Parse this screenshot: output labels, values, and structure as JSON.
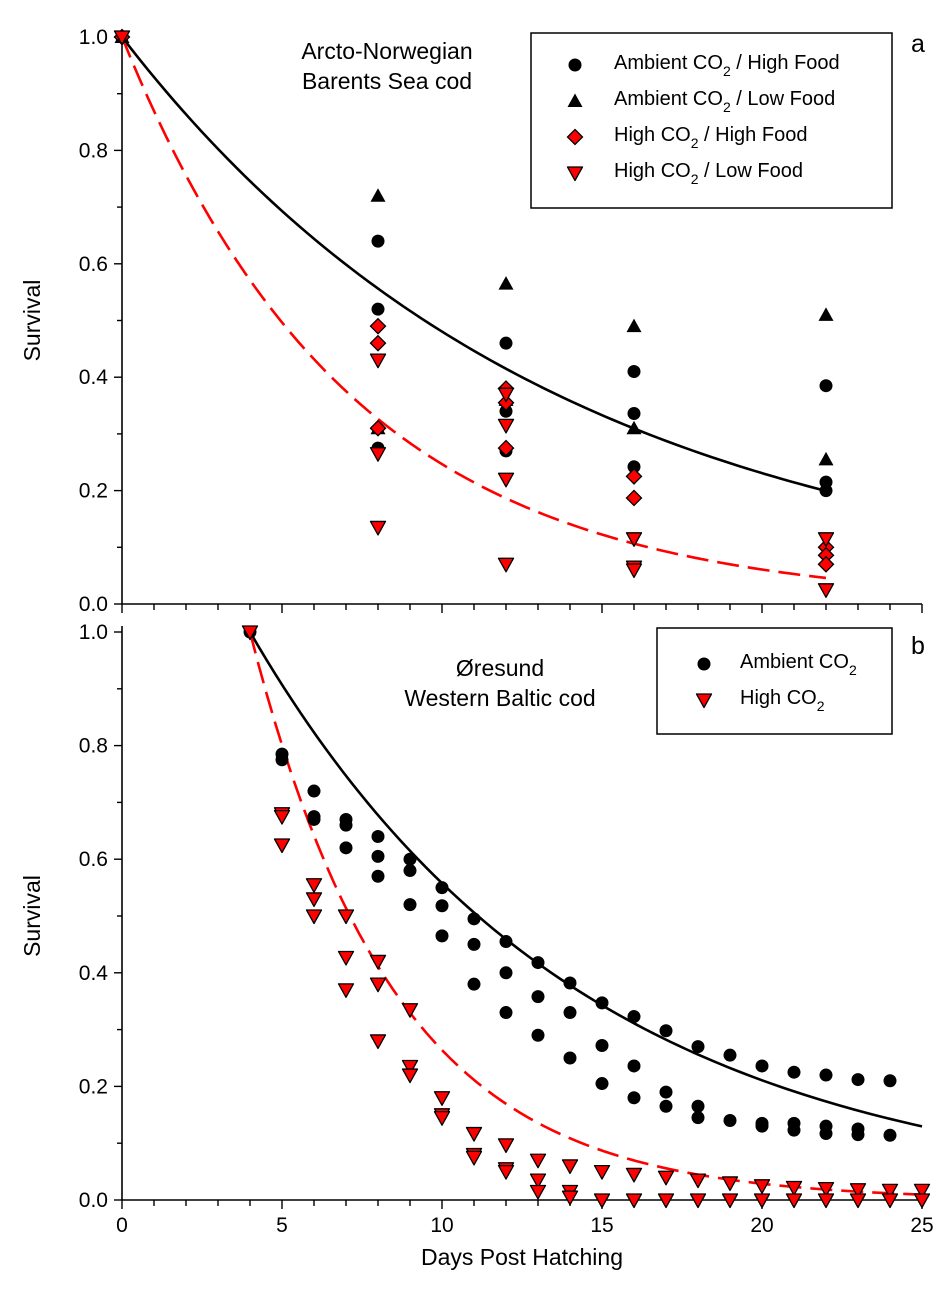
{
  "chart_data": [
    {
      "type": "scatter",
      "panel_label": "a",
      "annotation": [
        "Arcto-Norwegian",
        "Barents Sea cod"
      ],
      "ylabel": "Survival",
      "xlabel": "",
      "xlim": [
        0,
        25
      ],
      "ylim": [
        0,
        1.0
      ],
      "legend_position": "top-right",
      "x_ticks": [],
      "y_ticks": [
        "0.0",
        "0.2",
        "0.4",
        "0.6",
        "0.8",
        "1.0"
      ],
      "series": [
        {
          "name": [
            "Ambient CO",
            "2",
            " / High Food"
          ],
          "marker": "circle",
          "color": "#000000",
          "points": [
            [
              0,
              1.0
            ],
            [
              8,
              0.64
            ],
            [
              8,
              0.52
            ],
            [
              8,
              0.275
            ],
            [
              12,
              0.46
            ],
            [
              12,
              0.34
            ],
            [
              12,
              0.27
            ],
            [
              16,
              0.41
            ],
            [
              16,
              0.336
            ],
            [
              16,
              0.242
            ],
            [
              22,
              0.385
            ],
            [
              22,
              0.215
            ],
            [
              22,
              0.2
            ]
          ]
        },
        {
          "name": [
            "Ambient CO",
            "2",
            " / Low Food"
          ],
          "marker": "triangle-up",
          "color": "#000000",
          "points": [
            [
              0,
              1.0
            ],
            [
              8,
              0.72
            ],
            [
              8,
              0.31
            ],
            [
              12,
              0.565
            ],
            [
              12,
              0.36
            ],
            [
              16,
              0.49
            ],
            [
              16,
              0.31
            ],
            [
              22,
              0.51
            ],
            [
              22,
              0.255
            ]
          ]
        },
        {
          "name": [
            "High CO",
            "2",
            " / High Food"
          ],
          "marker": "diamond",
          "color": "#ff0000",
          "points": [
            [
              0,
              1.0
            ],
            [
              8,
              0.49
            ],
            [
              8,
              0.46
            ],
            [
              8,
              0.31
            ],
            [
              12,
              0.38
            ],
            [
              12,
              0.355
            ],
            [
              12,
              0.275
            ],
            [
              16,
              0.225
            ],
            [
              16,
              0.187
            ],
            [
              22,
              0.1
            ],
            [
              22,
              0.086
            ],
            [
              22,
              0.07
            ]
          ]
        },
        {
          "name": [
            "High CO",
            "2",
            " / Low Food"
          ],
          "marker": "triangle-down",
          "color": "#ff0000",
          "points": [
            [
              0,
              1.0
            ],
            [
              8,
              0.43
            ],
            [
              8,
              0.265
            ],
            [
              8,
              0.135
            ],
            [
              12,
              0.37
            ],
            [
              12,
              0.315
            ],
            [
              12,
              0.22
            ],
            [
              12,
              0.07
            ],
            [
              16,
              0.115
            ],
            [
              16,
              0.065
            ],
            [
              16,
              0.06
            ],
            [
              22,
              0.115
            ],
            [
              22,
              0.025
            ]
          ]
        }
      ],
      "fits": [
        {
          "style": "solid",
          "color": "#000000",
          "x_range": [
            0,
            22
          ],
          "y0": 1.0,
          "rate": 0.0733
        },
        {
          "style": "dashed",
          "color": "#ff0000",
          "x_range": [
            0,
            22
          ],
          "y0": 1.0,
          "rate": 0.14
        }
      ]
    },
    {
      "type": "scatter",
      "panel_label": "b",
      "annotation": [
        "Øresund",
        "Western Baltic cod"
      ],
      "ylabel": "Survival",
      "xlabel": "Days Post Hatching",
      "xlim": [
        0,
        25
      ],
      "ylim": [
        0,
        1.0
      ],
      "legend_position": "top-right",
      "x_ticks": [
        "0",
        "5",
        "10",
        "15",
        "20",
        "25"
      ],
      "y_ticks": [
        "0.0",
        "0.2",
        "0.4",
        "0.6",
        "0.8",
        "1.0"
      ],
      "series": [
        {
          "name": [
            "Ambient CO",
            "2",
            ""
          ],
          "marker": "circle",
          "color": "#000000",
          "points": [
            [
              4,
              1.0
            ],
            [
              5,
              0.785
            ],
            [
              5,
              0.775
            ],
            [
              6,
              0.72
            ],
            [
              6,
              0.675
            ],
            [
              6,
              0.67
            ],
            [
              7,
              0.67
            ],
            [
              7,
              0.66
            ],
            [
              7,
              0.62
            ],
            [
              8,
              0.64
            ],
            [
              8,
              0.605
            ],
            [
              8,
              0.57
            ],
            [
              9,
              0.6
            ],
            [
              9,
              0.58
            ],
            [
              9,
              0.52
            ],
            [
              10,
              0.55
            ],
            [
              10,
              0.518
            ],
            [
              10,
              0.465
            ],
            [
              11,
              0.495
            ],
            [
              11,
              0.45
            ],
            [
              11,
              0.38
            ],
            [
              12,
              0.455
            ],
            [
              12,
              0.4
            ],
            [
              12,
              0.33
            ],
            [
              13,
              0.418
            ],
            [
              13,
              0.358
            ],
            [
              13,
              0.29
            ],
            [
              14,
              0.382
            ],
            [
              14,
              0.33
            ],
            [
              14,
              0.25
            ],
            [
              15,
              0.347
            ],
            [
              15,
              0.272
            ],
            [
              15,
              0.205
            ],
            [
              16,
              0.323
            ],
            [
              16,
              0.236
            ],
            [
              16,
              0.18
            ],
            [
              17,
              0.298
            ],
            [
              17,
              0.19
            ],
            [
              17,
              0.165
            ],
            [
              18,
              0.27
            ],
            [
              18,
              0.165
            ],
            [
              18,
              0.145
            ],
            [
              19,
              0.255
            ],
            [
              19,
              0.14
            ],
            [
              20,
              0.236
            ],
            [
              20,
              0.135
            ],
            [
              20,
              0.13
            ],
            [
              21,
              0.225
            ],
            [
              21,
              0.135
            ],
            [
              21,
              0.123
            ],
            [
              22,
              0.22
            ],
            [
              22,
              0.13
            ],
            [
              22,
              0.117
            ],
            [
              23,
              0.212
            ],
            [
              23,
              0.125
            ],
            [
              23,
              0.115
            ],
            [
              24,
              0.21
            ],
            [
              24,
              0.114
            ]
          ]
        },
        {
          "name": [
            "High CO",
            "2",
            ""
          ],
          "marker": "triangle-down",
          "color": "#ff0000",
          "points": [
            [
              4,
              1.0
            ],
            [
              5,
              0.68
            ],
            [
              5,
              0.675
            ],
            [
              5,
              0.625
            ],
            [
              6,
              0.555
            ],
            [
              6,
              0.53
            ],
            [
              6,
              0.5
            ],
            [
              7,
              0.5
            ],
            [
              7,
              0.427
            ],
            [
              7,
              0.37
            ],
            [
              8,
              0.42
            ],
            [
              8,
              0.38
            ],
            [
              8,
              0.28
            ],
            [
              9,
              0.335
            ],
            [
              9,
              0.235
            ],
            [
              9,
              0.22
            ],
            [
              10,
              0.18
            ],
            [
              10,
              0.15
            ],
            [
              10,
              0.145
            ],
            [
              11,
              0.117
            ],
            [
              11,
              0.08
            ],
            [
              11,
              0.075
            ],
            [
              12,
              0.097
            ],
            [
              12,
              0.055
            ],
            [
              12,
              0.05
            ],
            [
              13,
              0.07
            ],
            [
              13,
              0.035
            ],
            [
              13,
              0.015
            ],
            [
              14,
              0.06
            ],
            [
              14,
              0.015
            ],
            [
              14,
              0.005
            ],
            [
              15,
              0.05
            ],
            [
              15,
              0.0
            ],
            [
              16,
              0.045
            ],
            [
              16,
              0.0
            ],
            [
              17,
              0.04
            ],
            [
              17,
              0.0
            ],
            [
              18,
              0.035
            ],
            [
              18,
              0.0
            ],
            [
              19,
              0.03
            ],
            [
              19,
              0.0
            ],
            [
              20,
              0.025
            ],
            [
              20,
              0.0
            ],
            [
              21,
              0.022
            ],
            [
              21,
              0.0
            ],
            [
              22,
              0.02
            ],
            [
              22,
              0.0
            ],
            [
              23,
              0.018
            ],
            [
              23,
              0.0
            ],
            [
              24,
              0.017
            ],
            [
              24,
              0.0
            ],
            [
              25,
              0.017
            ],
            [
              25,
              0.0
            ]
          ]
        }
      ],
      "fits": [
        {
          "style": "solid",
          "color": "#000000",
          "x_range": [
            4,
            25
          ],
          "y0": 1.0,
          "rate": 0.0973
        },
        {
          "style": "dashed",
          "color": "#ff0000",
          "x_range": [
            4,
            25
          ],
          "y0": 1.0,
          "rate": 0.222
        }
      ]
    }
  ]
}
